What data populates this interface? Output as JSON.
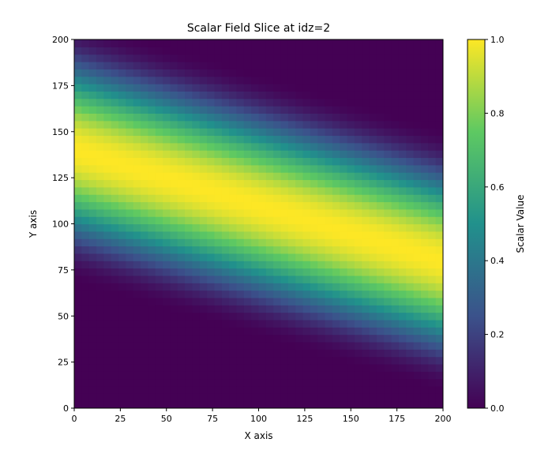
{
  "chart_data": {
    "type": "heatmap",
    "title": "Scalar Field Slice at idz=2",
    "xlabel": "X axis",
    "ylabel": "Y axis",
    "colorbar_label": "Scalar Value",
    "colormap": "viridis",
    "colormap_stops": [
      "#440154",
      "#3b528b",
      "#21918c",
      "#5ec962",
      "#fde725"
    ],
    "xlim": [
      0,
      200
    ],
    "ylim": [
      0,
      200
    ],
    "clim": [
      0,
      1
    ],
    "xticks": [
      "0",
      "25",
      "50",
      "75",
      "100",
      "125",
      "150",
      "175",
      "200"
    ],
    "yticks": [
      "0",
      "25",
      "50",
      "75",
      "100",
      "125",
      "150",
      "175",
      "200"
    ],
    "cticks": [
      "0.0",
      "0.2",
      "0.4",
      "0.6",
      "0.8",
      "1.0"
    ],
    "field": {
      "description_of_values": "scalar value along a diagonal band",
      "ridge_line": {
        "intercept_y_at_x0": 140,
        "slope": -0.3
      },
      "band_halfwidth_y": 72
    }
  }
}
